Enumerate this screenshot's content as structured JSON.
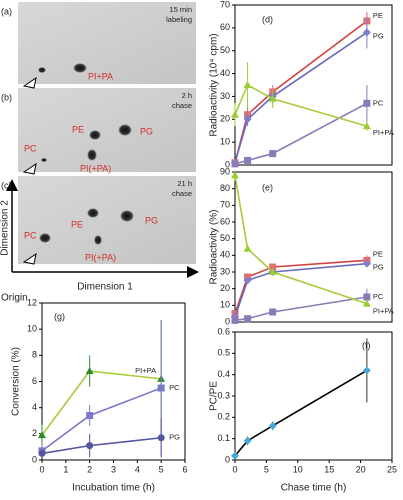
{
  "tlc": {
    "panels": [
      {
        "label": "(a)",
        "caption": [
          "15 min",
          "labeling"
        ],
        "spots": [
          "PI+PA"
        ]
      },
      {
        "label": "(b)",
        "caption": [
          "2 h",
          "chase"
        ],
        "spots": [
          "PC",
          "PE",
          "PG",
          "PI(+PA)"
        ]
      },
      {
        "label": "(c)",
        "caption": [
          "21 h",
          "chase"
        ],
        "spots": [
          "PC",
          "PE",
          "PG",
          "PI(+PA)"
        ]
      }
    ],
    "x_axis": "Dimension 1",
    "y_axis": "Dimension 2",
    "origin": "Origin"
  },
  "chart_data": [
    {
      "type": "line",
      "panel_label": "(d)",
      "y_label": "Radioactivity (10⁴ cpm)",
      "x": [
        0,
        2,
        6,
        21
      ],
      "xlim": [
        0,
        25
      ],
      "ylim": [
        0,
        70
      ],
      "yticks": [
        0,
        10,
        20,
        30,
        40,
        50,
        60,
        70
      ],
      "series": [
        {
          "name": "PE",
          "color": "#d04040",
          "marker_color": "#e07070",
          "marker": "square",
          "values": [
            1,
            22,
            32,
            63
          ],
          "errors": [
            1,
            4,
            3,
            4
          ]
        },
        {
          "name": "PG",
          "color": "#6a6ac0",
          "marker_color": "#7f7fd0",
          "marker": "diamond",
          "values": [
            1,
            20,
            30,
            58
          ],
          "errors": [
            1,
            3,
            3,
            7
          ]
        },
        {
          "name": "PC",
          "color": "#8a7ab8",
          "marker_color": "#8a7ab8",
          "marker": "square",
          "values": [
            0.5,
            2,
            5,
            27
          ],
          "errors": [
            0.5,
            1,
            1,
            8
          ]
        },
        {
          "name": "PI+PA",
          "color": "#a8cc3a",
          "marker_color": "#9acd32",
          "marker": "triangle",
          "values": [
            22,
            35,
            29,
            17
          ],
          "errors": [
            5,
            10,
            4,
            2
          ]
        }
      ]
    },
    {
      "type": "line",
      "panel_label": "(e)",
      "y_label": "Radioactivity (%)",
      "x": [
        0,
        2,
        6,
        21
      ],
      "xlim": [
        0,
        25
      ],
      "ylim": [
        0,
        90
      ],
      "yticks": [
        0,
        10,
        20,
        30,
        40,
        50,
        60,
        70,
        80,
        90
      ],
      "series": [
        {
          "name": "PE",
          "color": "#d04040",
          "marker_color": "#e07070",
          "marker": "square",
          "values": [
            5,
            27,
            33,
            37
          ],
          "errors": [
            2,
            2,
            2,
            3
          ]
        },
        {
          "name": "PG",
          "color": "#6a6ac0",
          "marker_color": "#7f7fd0",
          "marker": "diamond",
          "values": [
            3,
            25,
            30,
            35
          ],
          "errors": [
            2,
            2,
            2,
            2
          ]
        },
        {
          "name": "PC",
          "color": "#8a7ab8",
          "marker_color": "#8a7ab8",
          "marker": "square",
          "values": [
            1,
            2,
            6,
            15
          ],
          "errors": [
            0.5,
            1,
            1,
            5
          ]
        },
        {
          "name": "PI+PA",
          "color": "#a8cc3a",
          "marker_color": "#9acd32",
          "marker": "triangle",
          "values": [
            88,
            44,
            30,
            11
          ],
          "errors": [
            3,
            2,
            2,
            2
          ]
        }
      ]
    },
    {
      "type": "line",
      "panel_label": "(f)",
      "y_label": "PC/PE",
      "x_label": "Chase time (h)",
      "x": [
        0,
        2,
        6,
        21
      ],
      "xlim": [
        0,
        25
      ],
      "xticks": [
        0,
        5,
        10,
        15,
        20,
        25
      ],
      "ylim": [
        0,
        0.6
      ],
      "yticks": [
        0,
        0.1,
        0.2,
        0.3,
        0.4,
        0.5,
        0.6
      ],
      "series": [
        {
          "color": "#000000",
          "marker_color": "#4aa8d8",
          "marker": "diamond",
          "values": [
            0.02,
            0.09,
            0.16,
            0.42
          ],
          "errors": [
            0.01,
            0.02,
            0.02,
            0.15
          ]
        }
      ]
    },
    {
      "type": "line",
      "panel_label": "(g)",
      "y_label": "Conversion (%)",
      "x_label": "Incubation time (h)",
      "x": [
        0,
        2,
        5
      ],
      "xlim": [
        0,
        6
      ],
      "xticks": [
        0,
        1,
        2,
        3,
        4,
        5,
        6
      ],
      "ylim": [
        0,
        12
      ],
      "yticks": [
        0,
        2,
        4,
        6,
        8,
        10,
        12
      ],
      "series": [
        {
          "name": "PI+PA",
          "color": "#a8cc3a",
          "marker_color": "#2e8b2e",
          "marker": "triangle",
          "values": [
            1.9,
            6.8,
            6.2
          ],
          "errors": [
            0.8,
            1.2,
            4.5
          ]
        },
        {
          "name": "PC",
          "color": "#7a7ac8",
          "marker_color": "#7a7ac8",
          "marker": "square",
          "values": [
            0.7,
            3.4,
            5.5
          ],
          "errors": [
            0.5,
            0.8,
            5.2
          ]
        },
        {
          "name": "PG",
          "color": "#5555a0",
          "marker_color": "#5555a0",
          "marker": "circle",
          "values": [
            0.5,
            1.1,
            1.7
          ],
          "errors": [
            0.3,
            0.9,
            1.5
          ]
        }
      ]
    }
  ]
}
